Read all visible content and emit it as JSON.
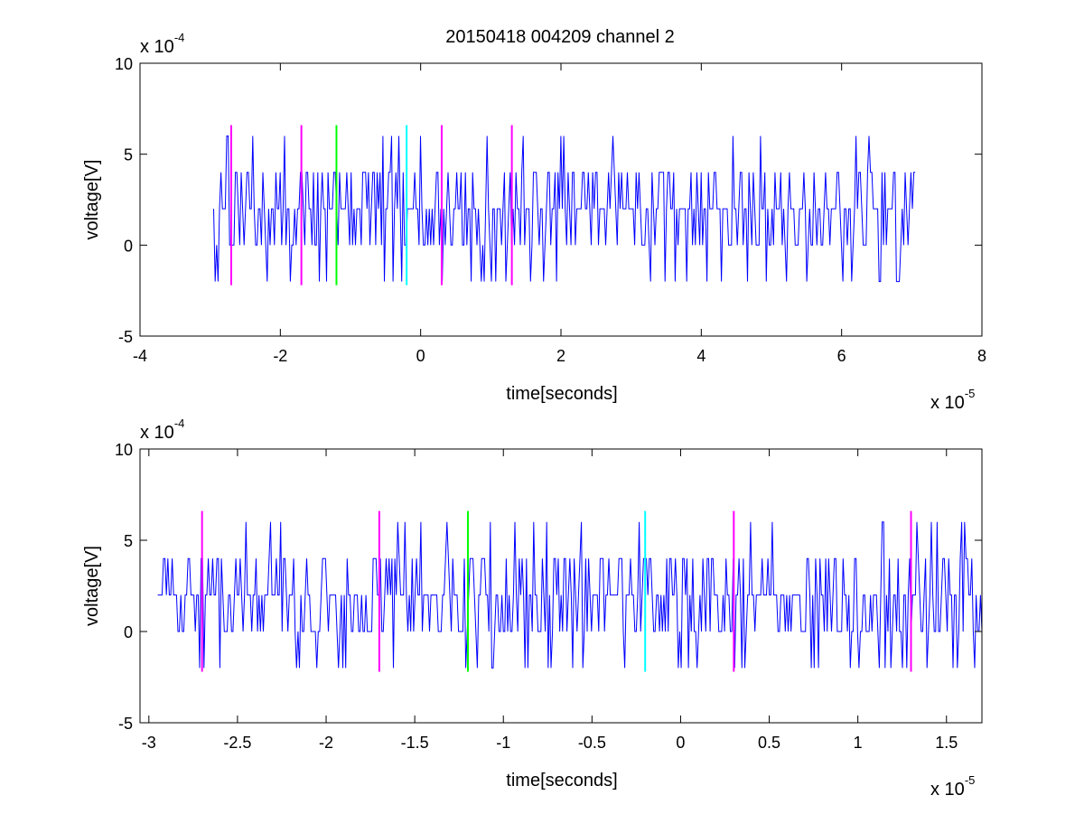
{
  "figure": {
    "title": "20150418 004209 channel 2"
  },
  "chart_data": [
    {
      "type": "line",
      "title": "20150418 004209 channel 2",
      "xlabel": "time[seconds]",
      "ylabel": "voltage[V]",
      "x_unit_scale": 1e-05,
      "y_unit_scale": 0.0001,
      "x_multiplier": {
        "base": "x 10",
        "exp": "-5"
      },
      "y_multiplier": {
        "base": "x 10",
        "exp": "-4"
      },
      "xlim": [
        -4,
        8
      ],
      "ylim": [
        -5,
        10
      ],
      "xticks": [
        -4,
        -2,
        0,
        2,
        4,
        6,
        8
      ],
      "xtick_labels": [
        "-4",
        "-2",
        "0",
        "2",
        "4",
        "6",
        "8"
      ],
      "yticks": [
        -5,
        0,
        5,
        10
      ],
      "ytick_labels": [
        "-5",
        "0",
        "5",
        "10"
      ],
      "grid": false,
      "signal": {
        "color": "#0000ff",
        "x_start": -2.95,
        "x_end": 7.05,
        "levels": [
          -2,
          0,
          2,
          4,
          6
        ],
        "baseline": 2,
        "seed": 7
      },
      "markers": [
        {
          "x": -2.7,
          "color": "#ff00ff",
          "y0": -2.2,
          "y1": 6.6
        },
        {
          "x": -1.7,
          "color": "#ff00ff",
          "y0": -2.2,
          "y1": 6.6
        },
        {
          "x": -1.2,
          "color": "#00ff00",
          "y0": -2.2,
          "y1": 6.6
        },
        {
          "x": -0.2,
          "color": "#00ffff",
          "y0": -2.2,
          "y1": 6.6
        },
        {
          "x": 0.3,
          "color": "#ff00ff",
          "y0": -2.2,
          "y1": 6.6
        },
        {
          "x": 1.3,
          "color": "#ff00ff",
          "y0": -2.2,
          "y1": 6.6
        }
      ]
    },
    {
      "type": "line",
      "title": "",
      "xlabel": "time[seconds]",
      "ylabel": "voltage[V]",
      "x_unit_scale": 1e-05,
      "y_unit_scale": 0.0001,
      "x_multiplier": {
        "base": "x 10",
        "exp": "-5"
      },
      "y_multiplier": {
        "base": "x 10",
        "exp": "-4"
      },
      "xlim": [
        -3.05,
        1.7
      ],
      "ylim": [
        -5,
        10
      ],
      "xticks": [
        -3,
        -2.5,
        -2,
        -1.5,
        -1,
        -0.5,
        0,
        0.5,
        1,
        1.5
      ],
      "xtick_labels": [
        "-3",
        "-2.5",
        "-2",
        "-1.5",
        "-1",
        "-0.5",
        "0",
        "0.5",
        "1",
        "1.5"
      ],
      "yticks": [
        -5,
        0,
        5,
        10
      ],
      "ytick_labels": [
        "-5",
        "0",
        "5",
        "10"
      ],
      "grid": false,
      "signal": {
        "color": "#0000ff",
        "x_start": -2.95,
        "x_end": 1.7,
        "levels": [
          -2,
          0,
          2,
          4,
          6
        ],
        "baseline": 2,
        "seed": 11
      },
      "markers": [
        {
          "x": -2.7,
          "color": "#ff00ff",
          "y0": -2.2,
          "y1": 6.6
        },
        {
          "x": -1.7,
          "color": "#ff00ff",
          "y0": -2.2,
          "y1": 6.6
        },
        {
          "x": -1.2,
          "color": "#00ff00",
          "y0": -2.2,
          "y1": 6.6
        },
        {
          "x": -0.2,
          "color": "#00ffff",
          "y0": -2.2,
          "y1": 6.6
        },
        {
          "x": 0.3,
          "color": "#ff00ff",
          "y0": -2.2,
          "y1": 6.6
        },
        {
          "x": 1.3,
          "color": "#ff00ff",
          "y0": -2.2,
          "y1": 6.6
        }
      ]
    }
  ]
}
